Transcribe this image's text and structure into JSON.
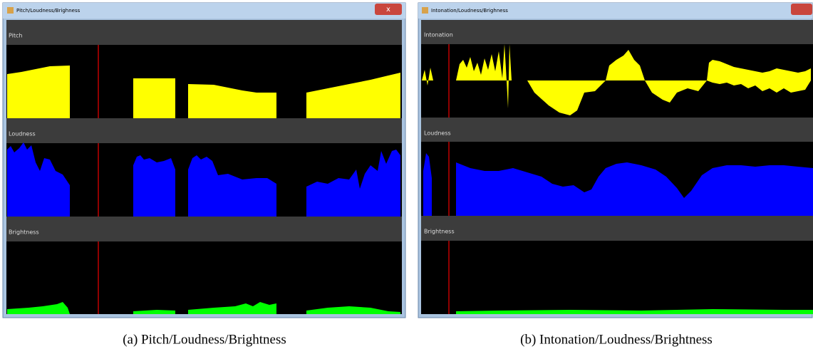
{
  "windows": [
    {
      "title": "Pitch/Loudness/Brighness",
      "panels": [
        "Pitch",
        "Loudness",
        "Brightness"
      ],
      "caption": "(a) Pitch/Loudness/Brightness"
    },
    {
      "title": "Intonation/Loudness/Brighness",
      "panels": [
        "Intonation",
        "Loudness",
        "Brightness"
      ],
      "caption": "(b) Intonation/Loudness/Brightness"
    }
  ]
}
